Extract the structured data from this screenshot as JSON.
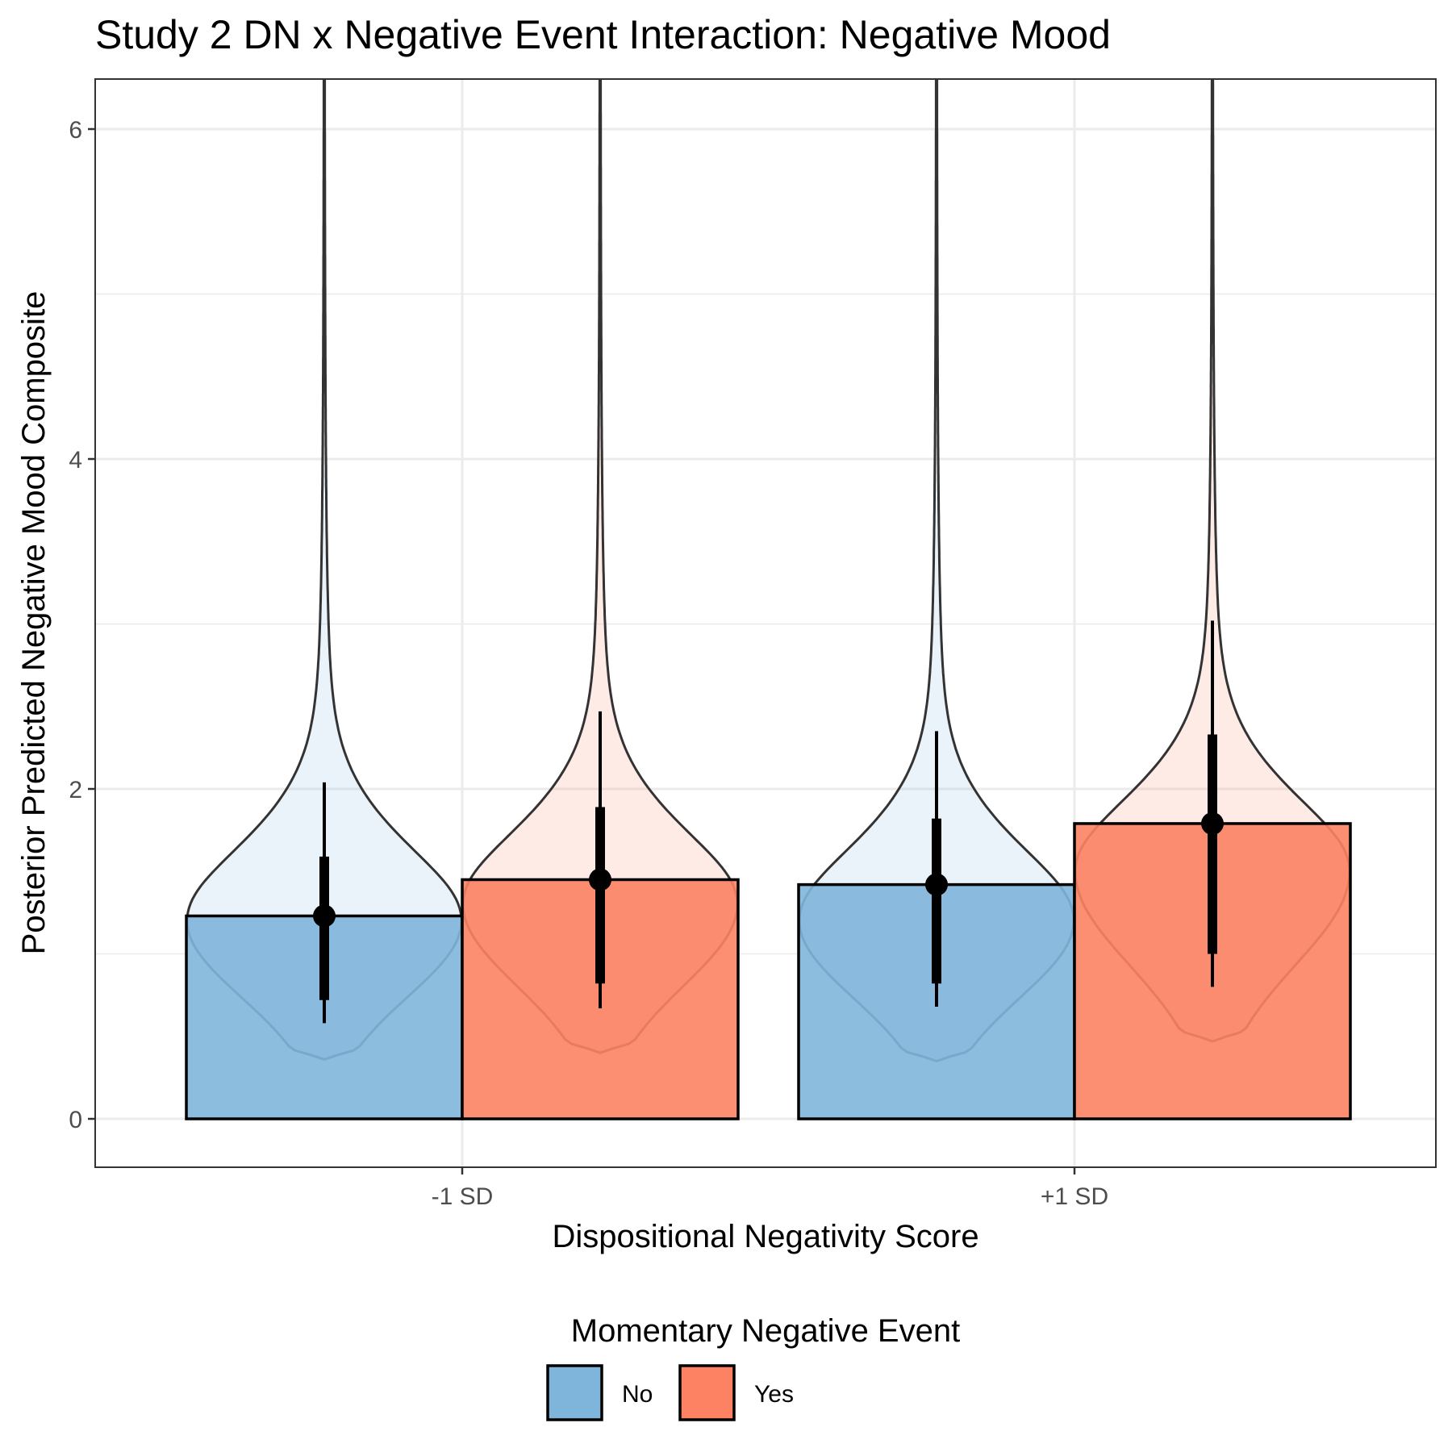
{
  "chart_data": {
    "type": "bar",
    "title": "Study 2 DN x Negative Event Interaction: Negative Mood",
    "xlabel": "Dispositional Negativity Score",
    "ylabel": "Posterior Predicted Negative Mood Composite",
    "categories": [
      "-1 SD",
      "+1 SD"
    ],
    "ylim": [
      -0.3,
      6.3
    ],
    "yticks": [
      0,
      2,
      4,
      6
    ],
    "grid": true,
    "legend": {
      "title": "Momentary Negative Event",
      "position": "bottom",
      "items": [
        {
          "label": "No",
          "color": "#7fb5da"
        },
        {
          "label": "Yes",
          "color": "#fc8263"
        }
      ]
    },
    "series": [
      {
        "name": "No",
        "color": "#7fb5da",
        "values": [
          1.23,
          1.42
        ],
        "interval_66": [
          [
            0.72,
            1.59
          ],
          [
            0.82,
            1.82
          ]
        ],
        "interval_95": [
          [
            0.58,
            2.04
          ],
          [
            0.68,
            2.35
          ]
        ],
        "density_range": [
          [
            0.36,
            6.3
          ],
          [
            0.35,
            6.3
          ]
        ],
        "density_mode": [
          1.2,
          1.2
        ]
      },
      {
        "name": "Yes",
        "color": "#fc8263",
        "values": [
          1.45,
          1.79
        ],
        "interval_66": [
          [
            0.82,
            1.89
          ],
          [
            1.0,
            2.33
          ]
        ],
        "interval_95": [
          [
            0.67,
            2.47
          ],
          [
            0.8,
            3.02
          ]
        ],
        "density_range": [
          [
            0.4,
            6.3
          ],
          [
            0.47,
            6.3
          ]
        ],
        "density_mode": [
          1.3,
          1.5
        ]
      }
    ]
  }
}
